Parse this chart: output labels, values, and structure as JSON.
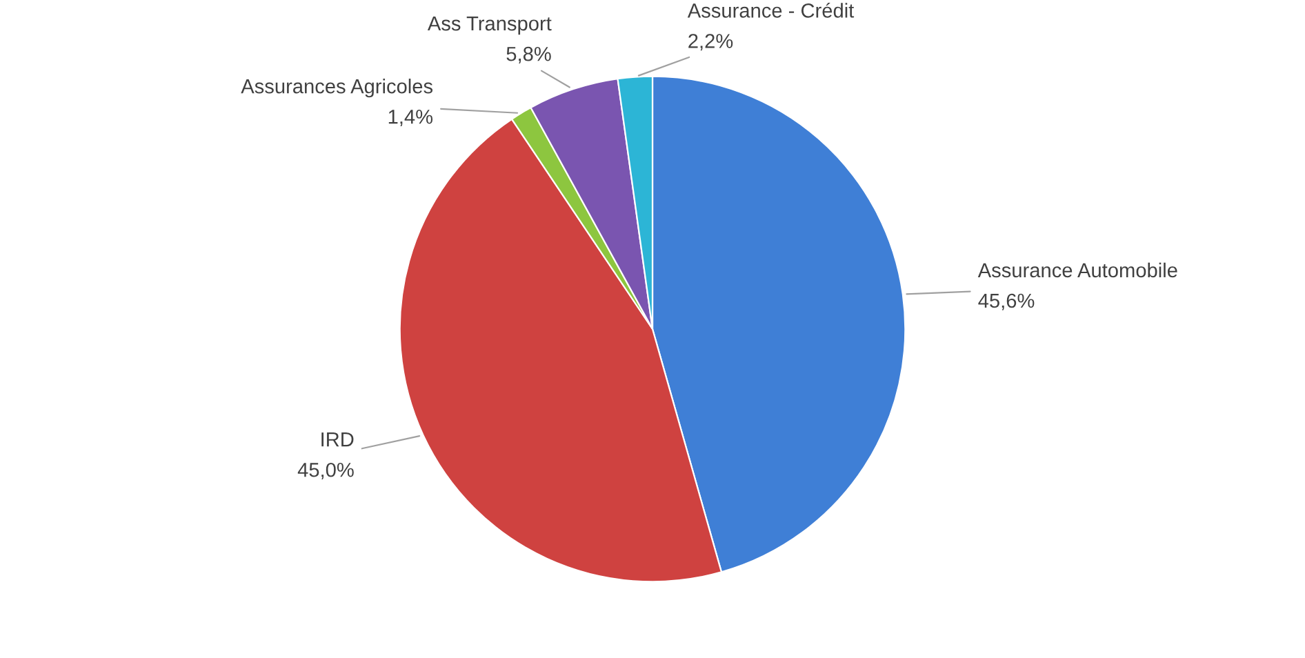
{
  "chart_data": {
    "type": "pie",
    "categories": [
      "Assurance Automobile",
      "IRD",
      "Assurances Agricoles",
      "Ass Transport",
      "Assurance - Crédit"
    ],
    "values": [
      45.6,
      45.0,
      1.4,
      5.8,
      2.2
    ],
    "value_labels": [
      "45,6%",
      "45,0%",
      "1,4%",
      "5,8%",
      "2,2%"
    ],
    "colors": [
      "#3f7fd6",
      "#cf4240",
      "#8dc63f",
      "#7a55b0",
      "#2cb5d6"
    ],
    "legend": false
  }
}
